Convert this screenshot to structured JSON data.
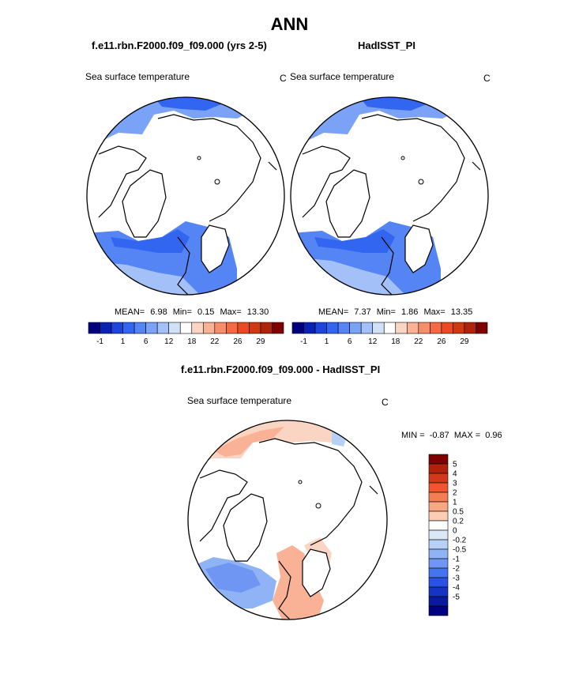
{
  "title": "ANN",
  "panels": {
    "left": {
      "heading": "f.e11.rbn.F2000.f09_f09.000 (yrs 2-5)",
      "variable": "Sea surface temperature",
      "units": "C",
      "stats": {
        "mean_label": "MEAN=",
        "mean": "6.98",
        "min_label": "Min=",
        "min": "0.15",
        "max_label": "Max=",
        "max": "13.30"
      }
    },
    "right": {
      "heading": "HadISST_PI",
      "variable": "Sea surface temperature",
      "units": "C",
      "stats": {
        "mean_label": "MEAN=",
        "mean": "7.37",
        "min_label": "Min=",
        "min": "1.86",
        "max_label": "Max=",
        "max": "13.35"
      }
    },
    "diff": {
      "heading": "f.e11.rbn.F2000.f09_f09.000 - HadISST_PI",
      "variable": "Sea surface temperature",
      "units": "C",
      "stats": {
        "min_label": "MIN =",
        "min": "-0.87",
        "max_label": "MAX =",
        "max": "0.96"
      }
    }
  },
  "colorbars": {
    "abs": {
      "colors": [
        "#00007f",
        "#0a22b4",
        "#1d45dc",
        "#3366f0",
        "#5584f4",
        "#7aa2f6",
        "#a3c1f8",
        "#d1e1f8",
        "#ffffff",
        "#fbd5c3",
        "#f9b296",
        "#f78e6a",
        "#f46a42",
        "#e94a22",
        "#cf3a10",
        "#ae240a",
        "#7f0000"
      ],
      "tick_labels": [
        "-1",
        "1",
        "6",
        "12",
        "18",
        "22",
        "26",
        "29"
      ]
    },
    "diff": {
      "colors": [
        "#7f0000",
        "#b0230b",
        "#d4381a",
        "#ef5530",
        "#f57d55",
        "#f9a682",
        "#fccdb4",
        "#ffffff",
        "#dbe8f8",
        "#b7d0f6",
        "#8fb3f4",
        "#6e96f2",
        "#4674ee",
        "#2a53e2",
        "#1733c5",
        "#0a1a9a",
        "#000080"
      ],
      "tick_labels": [
        "5",
        "4",
        "3",
        "2",
        "1",
        "0.5",
        "0.2",
        "0",
        "-0.2",
        "-0.5",
        "-1",
        "-2",
        "-3",
        "-4",
        "-5"
      ]
    }
  },
  "colors": {
    "ocean_warm": "#f6b89c",
    "ocean_cool": "#8db3f4",
    "land_outline": "#000000"
  }
}
